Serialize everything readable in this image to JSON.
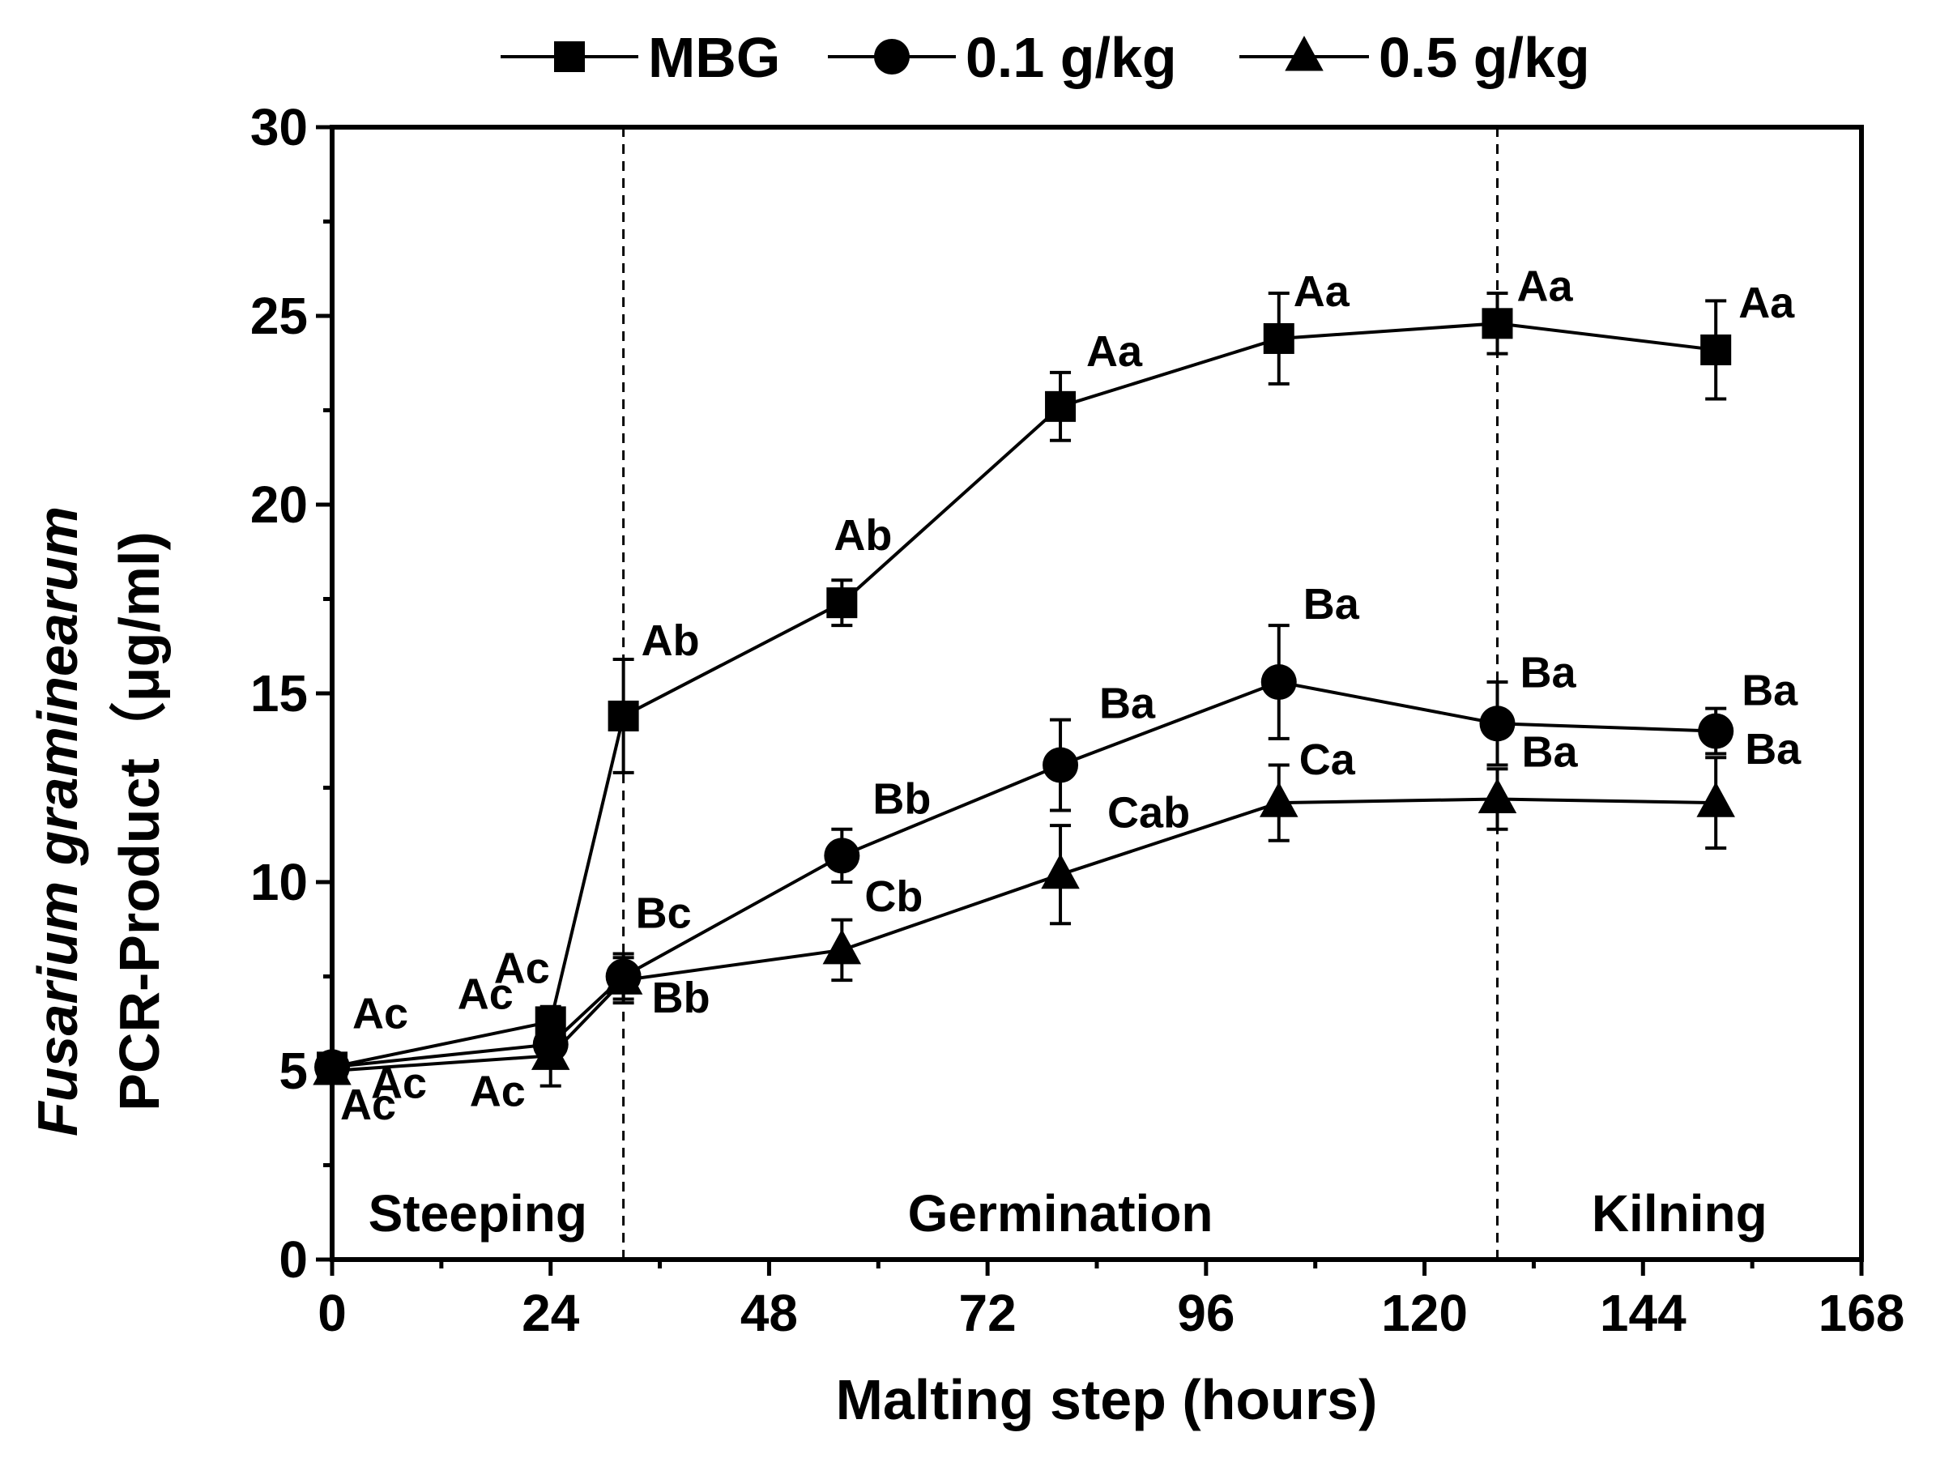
{
  "chart_data": {
    "type": "line",
    "xlabel": "Malting step (hours)",
    "ylabel_line1": "Fusarium graminearum",
    "ylabel_line2": "PCR-Product（μg/ml)",
    "xlim": [
      0,
      168
    ],
    "ylim": [
      0,
      30
    ],
    "xticks": [
      0,
      24,
      48,
      72,
      96,
      120,
      144,
      168
    ],
    "yticks": [
      0,
      5,
      10,
      15,
      20,
      25,
      30
    ],
    "x": [
      0,
      24,
      32,
      56,
      80,
      104,
      128,
      152
    ],
    "series": [
      {
        "name": "MBG",
        "marker": "square",
        "values": [
          5.1,
          6.3,
          14.4,
          17.4,
          22.6,
          24.4,
          24.8,
          24.1
        ],
        "errors": [
          0.15,
          0.4,
          1.5,
          0.6,
          0.9,
          1.2,
          0.8,
          1.3
        ],
        "labels": [
          "Ac",
          "Ac",
          "Ab",
          "Ab",
          "Aa",
          "Aa",
          "Aa",
          "Aa"
        ]
      },
      {
        "name": "0.1 g/kg",
        "marker": "circle",
        "values": [
          5.1,
          5.7,
          7.5,
          10.7,
          13.1,
          15.3,
          14.2,
          14.0
        ],
        "errors": [
          0.15,
          0.4,
          0.6,
          0.7,
          1.2,
          1.5,
          1.1,
          0.6
        ],
        "labels": [
          "Ac",
          "Ac",
          "Bc",
          "Bb",
          "Ba",
          "Ba",
          "Ba",
          "Ba"
        ]
      },
      {
        "name": "0.5 g/kg",
        "marker": "triangle",
        "values": [
          5.0,
          5.4,
          7.4,
          8.2,
          10.2,
          12.1,
          12.2,
          12.1
        ],
        "errors": [
          0.15,
          0.8,
          0.6,
          0.8,
          1.3,
          1.0,
          0.8,
          1.2
        ],
        "labels": [
          "Ac",
          "Ac",
          "Bb",
          "Cb",
          "Cab",
          "Ca",
          "Ba",
          "Ba"
        ]
      }
    ],
    "phase_dividers": [
      32,
      128
    ],
    "phases": [
      "Steeping",
      "Germination",
      "Kilning"
    ],
    "legend_position": "top-center"
  }
}
